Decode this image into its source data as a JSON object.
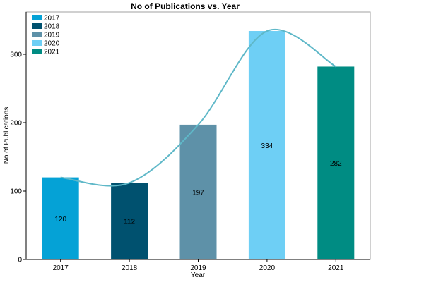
{
  "chart_data": {
    "type": "bar",
    "title": "No of Publications vs. Year",
    "xlabel": "Year",
    "ylabel": "No of Publications",
    "categories": [
      "2017",
      "2018",
      "2019",
      "2020",
      "2021"
    ],
    "values": [
      120,
      112,
      197,
      334,
      282
    ],
    "colors": [
      "#05a2d6",
      "#00516f",
      "#5e91a8",
      "#6ecff5",
      "#008c83"
    ],
    "ylim": [
      0,
      350
    ],
    "yticks": [
      0,
      100,
      200,
      300
    ],
    "grid": false,
    "legend": {
      "placement": "top-left",
      "entries": [
        "2017",
        "2018",
        "2019",
        "2020",
        "2021"
      ]
    },
    "trendline": {
      "type": "smooth",
      "color": "#5fb8c8"
    }
  }
}
